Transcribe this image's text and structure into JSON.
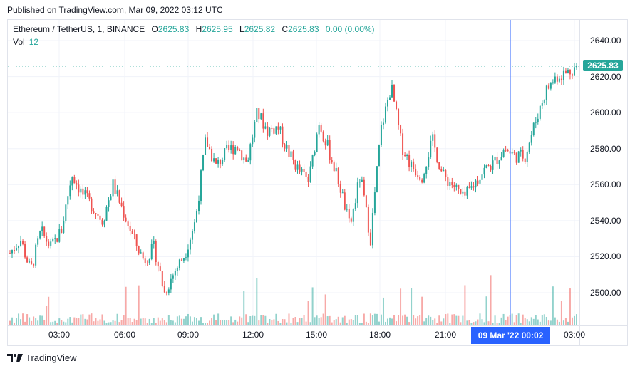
{
  "published": "Published on TradingView.com, Mar 09, 2022 03:12 UTC",
  "legend": {
    "symbol": "Ethereum / TetherUS, 1, BINANCE",
    "o_label": "O",
    "o": "2625.83",
    "h_label": "H",
    "h": "2625.95",
    "l_label": "L",
    "l": "2625.82",
    "c_label": "C",
    "c": "2625.83",
    "change": "0.00 (0.00%)",
    "vol_label": "Vol",
    "vol": "12"
  },
  "current_price": "2625.83",
  "crosshair_label": "09 Mar '22   00:02",
  "brand": "TradingView",
  "colors": {
    "up": "#26a69a",
    "down": "#ef5350",
    "crosshair": "#2962ff",
    "axis_text": "#131722"
  },
  "chart_data": {
    "type": "candlestick",
    "y_ticks": [
      "2640.00",
      "2620.00",
      "2600.00",
      "2580.00",
      "2560.00",
      "2540.00",
      "2520.00",
      "2500.00"
    ],
    "x_ticks": [
      "03:00",
      "06:00",
      "09:00",
      "12:00",
      "15:00",
      "18:00",
      "21:00",
      "03:00"
    ],
    "ylim": [
      2480,
      2645
    ],
    "current_price": 2625.83,
    "close_path": [
      {
        "t": "00:00",
        "v": 2522
      },
      {
        "t": "00:30",
        "v": 2530
      },
      {
        "t": "01:00",
        "v": 2512
      },
      {
        "t": "01:30",
        "v": 2534
      },
      {
        "t": "02:00",
        "v": 2525
      },
      {
        "t": "02:30",
        "v": 2535
      },
      {
        "t": "02:45",
        "v": 2566
      },
      {
        "t": "03:00",
        "v": 2555
      },
      {
        "t": "03:30",
        "v": 2548
      },
      {
        "t": "04:00",
        "v": 2540
      },
      {
        "t": "04:30",
        "v": 2560
      },
      {
        "t": "05:00",
        "v": 2545
      },
      {
        "t": "05:30",
        "v": 2530
      },
      {
        "t": "06:00",
        "v": 2518
      },
      {
        "t": "06:30",
        "v": 2525
      },
      {
        "t": "07:00",
        "v": 2500
      },
      {
        "t": "07:30",
        "v": 2512
      },
      {
        "t": "08:00",
        "v": 2522
      },
      {
        "t": "08:30",
        "v": 2540
      },
      {
        "t": "09:00",
        "v": 2585
      },
      {
        "t": "09:30",
        "v": 2570
      },
      {
        "t": "10:00",
        "v": 2578
      },
      {
        "t": "10:30",
        "v": 2582
      },
      {
        "t": "11:00",
        "v": 2572
      },
      {
        "t": "11:30",
        "v": 2600
      },
      {
        "t": "12:00",
        "v": 2590
      },
      {
        "t": "12:30",
        "v": 2592
      },
      {
        "t": "13:00",
        "v": 2578
      },
      {
        "t": "13:30",
        "v": 2568
      },
      {
        "t": "14:00",
        "v": 2562
      },
      {
        "t": "14:30",
        "v": 2595
      },
      {
        "t": "15:00",
        "v": 2578
      },
      {
        "t": "15:30",
        "v": 2560
      },
      {
        "t": "16:00",
        "v": 2536
      },
      {
        "t": "16:30",
        "v": 2565
      },
      {
        "t": "17:00",
        "v": 2530
      },
      {
        "t": "17:30",
        "v": 2590
      },
      {
        "t": "18:00",
        "v": 2615
      },
      {
        "t": "18:30",
        "v": 2582
      },
      {
        "t": "19:00",
        "v": 2570
      },
      {
        "t": "19:30",
        "v": 2565
      },
      {
        "t": "20:00",
        "v": 2585
      },
      {
        "t": "20:30",
        "v": 2565
      },
      {
        "t": "21:00",
        "v": 2560
      },
      {
        "t": "21:30",
        "v": 2552
      },
      {
        "t": "22:00",
        "v": 2560
      },
      {
        "t": "22:30",
        "v": 2568
      },
      {
        "t": "23:00",
        "v": 2572
      },
      {
        "t": "23:30",
        "v": 2580
      },
      {
        "t": "00:00",
        "v": 2576
      },
      {
        "t": "00:30",
        "v": 2576
      },
      {
        "t": "01:00",
        "v": 2595
      },
      {
        "t": "01:30",
        "v": 2612
      },
      {
        "t": "02:00",
        "v": 2620
      },
      {
        "t": "02:30",
        "v": 2622
      },
      {
        "t": "03:00",
        "v": 2625.83
      }
    ]
  }
}
